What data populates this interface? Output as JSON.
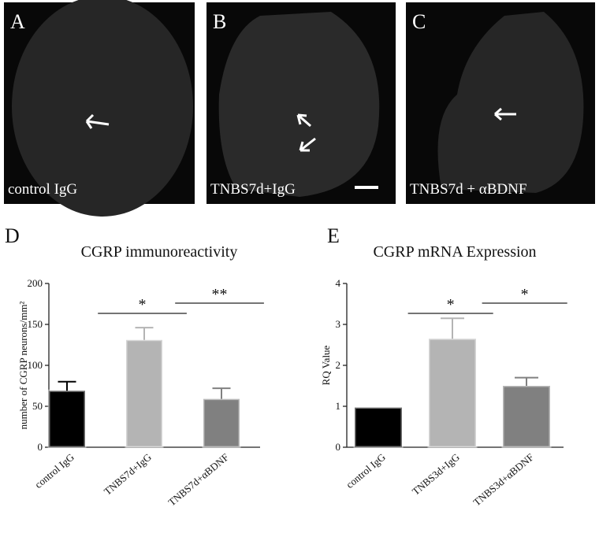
{
  "panels": [
    {
      "letter": "A",
      "caption": "control IgG"
    },
    {
      "letter": "B",
      "caption": "TNBS7d+IgG"
    },
    {
      "letter": "C",
      "caption": "TNBS7d + αBDNF"
    }
  ],
  "chart_data": [
    {
      "type": "bar",
      "panel": "D",
      "title": "CGRP immunoreactivity",
      "y_label": "number of CGRP neurons/mm²",
      "categories": [
        "control IgG",
        "TNBS7d+IgG",
        "TNBS7d+αBDNF"
      ],
      "values": [
        69,
        131,
        59
      ],
      "errors": [
        11,
        15,
        13
      ],
      "colors": [
        "#000000",
        "#b4b4b4",
        "#808080"
      ],
      "ylim": [
        0,
        200
      ],
      "yticks": [
        0,
        50,
        100,
        150,
        200
      ],
      "annotations": [
        "*",
        "**"
      ]
    },
    {
      "type": "bar",
      "panel": "E",
      "title": "CGRP mRNA Expression",
      "y_label": "RQ Value",
      "categories": [
        "control IgG",
        "TNBS3d+IgG",
        "TNBS3d+αBDNF"
      ],
      "values": [
        0.97,
        2.65,
        1.5
      ],
      "errors": [
        null,
        0.5,
        0.2
      ],
      "colors": [
        "#000000",
        "#b4b4b4",
        "#808080"
      ],
      "ylim": [
        0,
        4
      ],
      "yticks": [
        0,
        1,
        2,
        3,
        4
      ],
      "annotations": [
        "*",
        "*"
      ]
    }
  ]
}
